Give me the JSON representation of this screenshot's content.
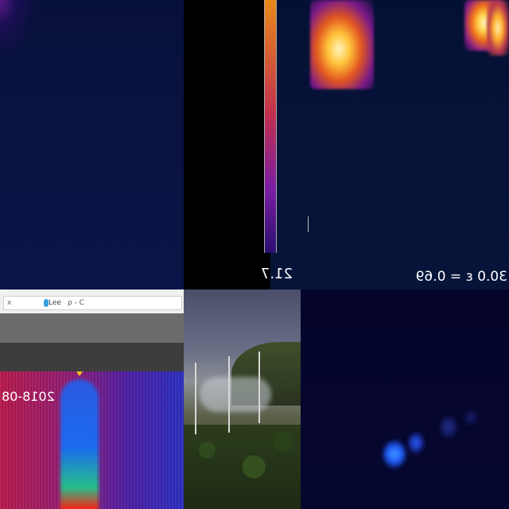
{
  "top_right": {
    "scale_min_label": "21.7",
    "emissivity_label": "30.0 ε = 0.69"
  },
  "bottom_left": {
    "browser": {
      "close_glyph": "x",
      "tab_text": "Lee",
      "search_icons": "ρ - C"
    },
    "spectrogram": {
      "timestamp": "2018-08"
    }
  },
  "icons": [
    "tab-favicon-icon",
    "search-icon",
    "refresh-icon",
    "marker-triangle-icon"
  ]
}
